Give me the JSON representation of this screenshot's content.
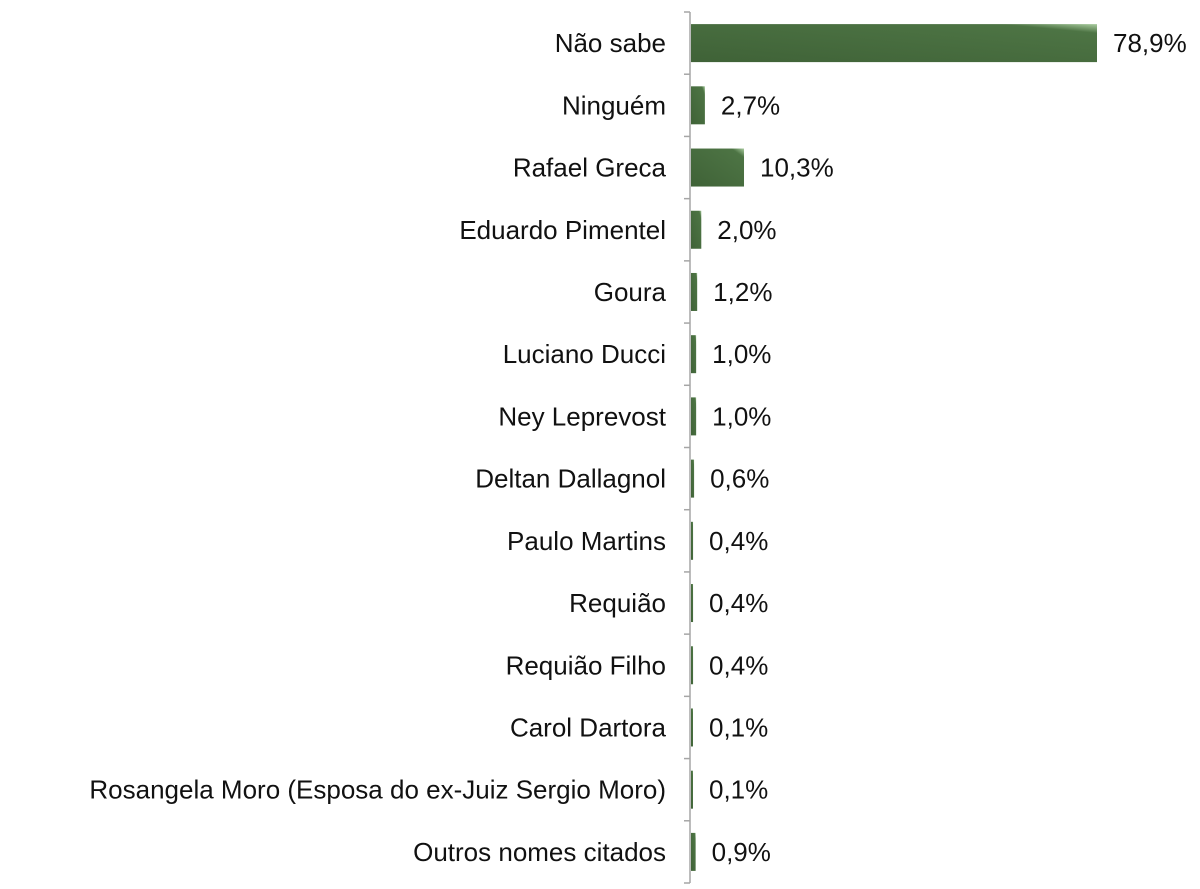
{
  "chart_data": {
    "type": "bar",
    "orientation": "horizontal",
    "categories": [
      "Não sabe",
      "Ninguém",
      "Rafael Greca",
      "Eduardo Pimentel",
      "Goura",
      "Luciano Ducci",
      "Ney Leprevost",
      "Deltan Dallagnol",
      "Paulo Martins",
      "Requião",
      "Requião Filho",
      "Carol Dartora",
      "Rosangela Moro (Esposa do ex-Juiz Sergio Moro)",
      "Outros nomes citados"
    ],
    "values": [
      78.9,
      2.7,
      10.3,
      2.0,
      1.2,
      1.0,
      1.0,
      0.6,
      0.4,
      0.4,
      0.4,
      0.1,
      0.1,
      0.9
    ],
    "value_labels": [
      "78,9%",
      "2,7%",
      "10,3%",
      "2,0%",
      "1,2%",
      "1,0%",
      "1,0%",
      "0,6%",
      "0,4%",
      "0,4%",
      "0,4%",
      "0,1%",
      "0,1%",
      "0,9%"
    ],
    "title": "",
    "xlabel": "",
    "ylabel": "",
    "xlim": [
      0,
      80
    ],
    "grid": false,
    "legend": "none",
    "colors": {
      "bar_dark": "#3f6237",
      "bar_light": "#9cc293",
      "axis": "#a6a6a6",
      "text": "#111111"
    }
  }
}
